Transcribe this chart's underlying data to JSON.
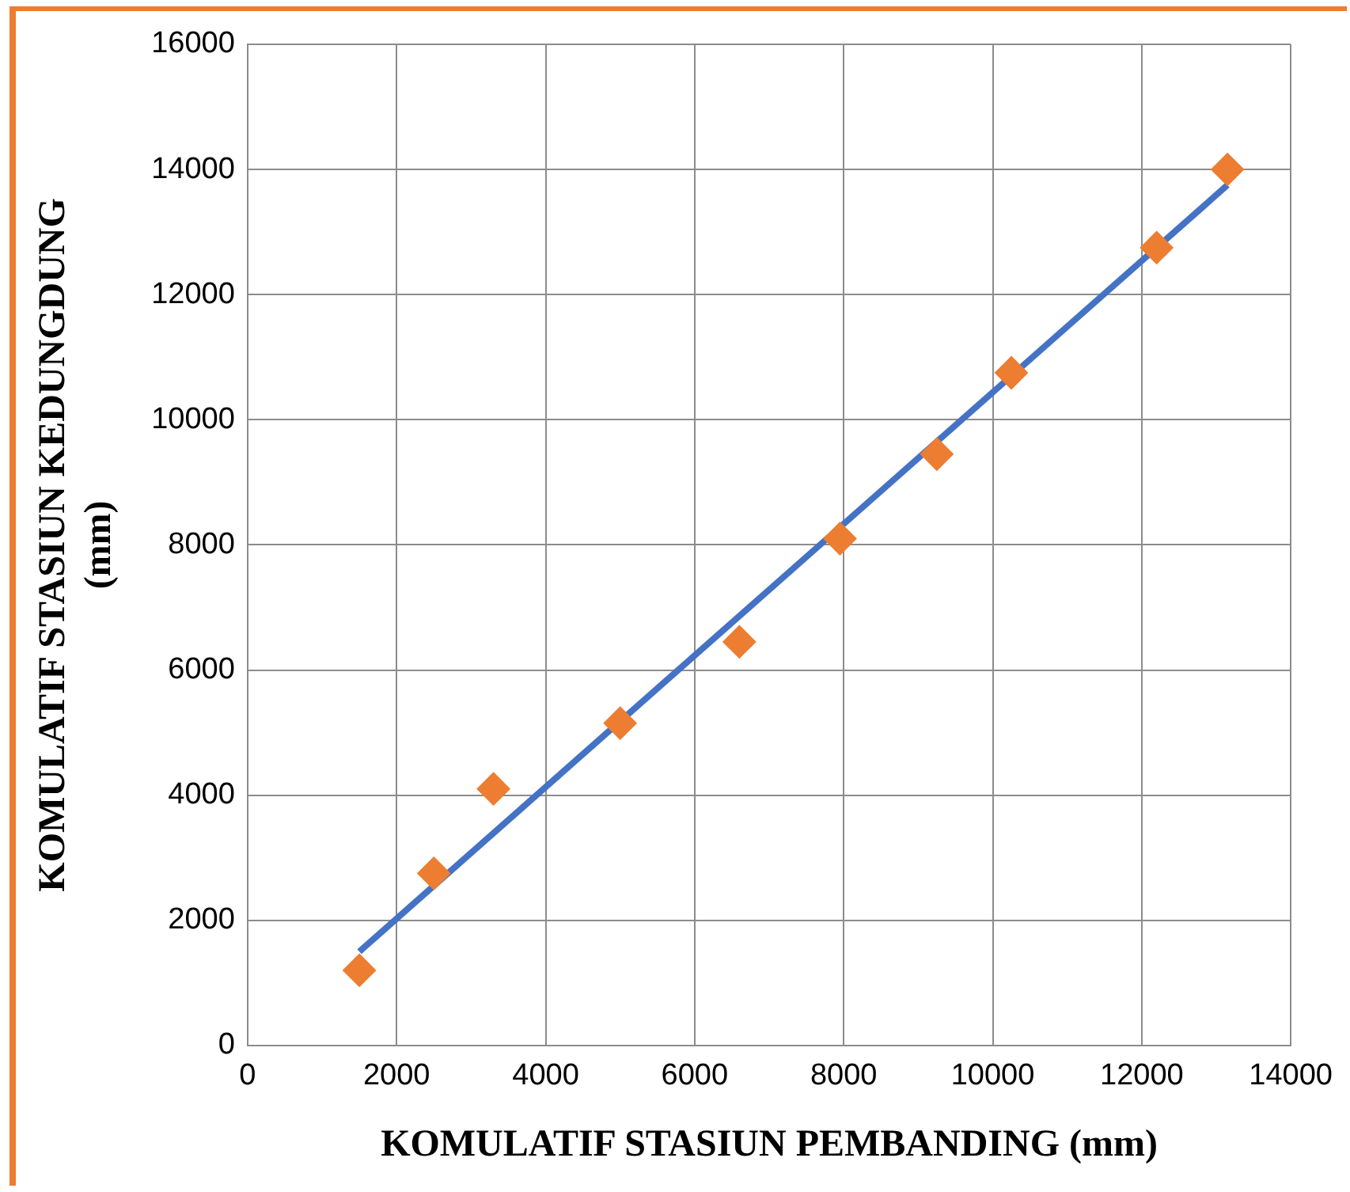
{
  "chart_data": {
    "type": "scatter",
    "xlabel": "KOMULATIF STASIUN PEMBANDING (mm)",
    "ylabel": "KOMULATIF STASIUN KEDUNGDUNG\n(mm)",
    "xlim": [
      0,
      14000
    ],
    "xticks": [
      0,
      2000,
      4000,
      6000,
      8000,
      10000,
      12000,
      14000
    ],
    "ylim": [
      0,
      16000
    ],
    "yticks": [
      0,
      2000,
      4000,
      6000,
      8000,
      10000,
      12000,
      14000,
      16000
    ],
    "grid": true,
    "legend": false,
    "series": [
      {
        "type": "scatter",
        "marker": "diamond",
        "color": "#ed7d31",
        "x": [
          1500,
          2500,
          3300,
          5000,
          6600,
          7950,
          9250,
          10250,
          12200,
          13150
        ],
        "values": [
          1200,
          2750,
          4100,
          5150,
          6450,
          8100,
          9450,
          10750,
          12750,
          14000
        ]
      },
      {
        "type": "line",
        "marker": "none",
        "color": "#4472c4",
        "x": [
          1500,
          13150
        ],
        "values": [
          1500,
          13750
        ]
      }
    ]
  }
}
